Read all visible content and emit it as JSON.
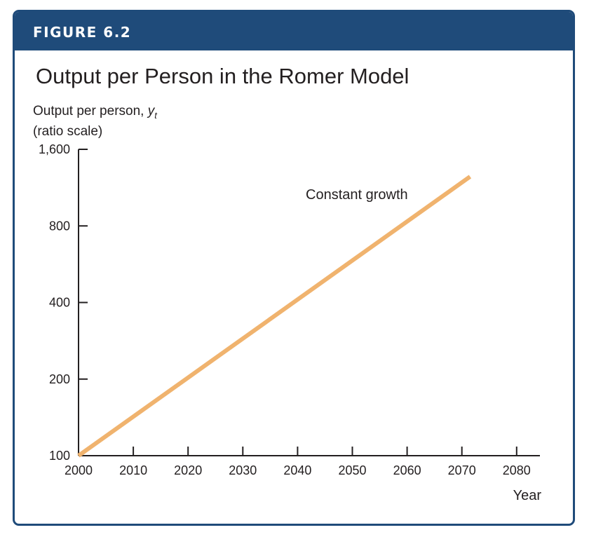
{
  "figure": {
    "label": "FIGURE 6.2",
    "title": "Output per Person in the Romer Model",
    "border_color": "#1f4b7a",
    "banner_color": "#1f4b7a"
  },
  "chart_data": {
    "type": "line",
    "title": "Output per Person in the Romer Model",
    "ylabel_line1": "Output per person, ",
    "ylabel_var": "y",
    "ylabel_sub": "t",
    "ylabel_line2": "(ratio scale)",
    "xlabel": "Year",
    "y_scale": "log",
    "xlim": [
      2000,
      2085
    ],
    "ylim": [
      100,
      1600
    ],
    "x_ticks": [
      2000,
      2010,
      2020,
      2030,
      2040,
      2050,
      2060,
      2070,
      2080
    ],
    "x_tick_labels": [
      "2000",
      "2010",
      "2020",
      "2030",
      "2040",
      "2050",
      "2060",
      "2070",
      "2080"
    ],
    "y_ticks": [
      100,
      200,
      400,
      800,
      1600
    ],
    "y_tick_labels": [
      "100",
      "200",
      "400",
      "800",
      "1,600"
    ],
    "grid": false,
    "series": [
      {
        "name": "Constant growth",
        "color": "#f0b36e",
        "x": [
          2000,
          2071.5
        ],
        "y": [
          100,
          1250
        ]
      }
    ]
  }
}
